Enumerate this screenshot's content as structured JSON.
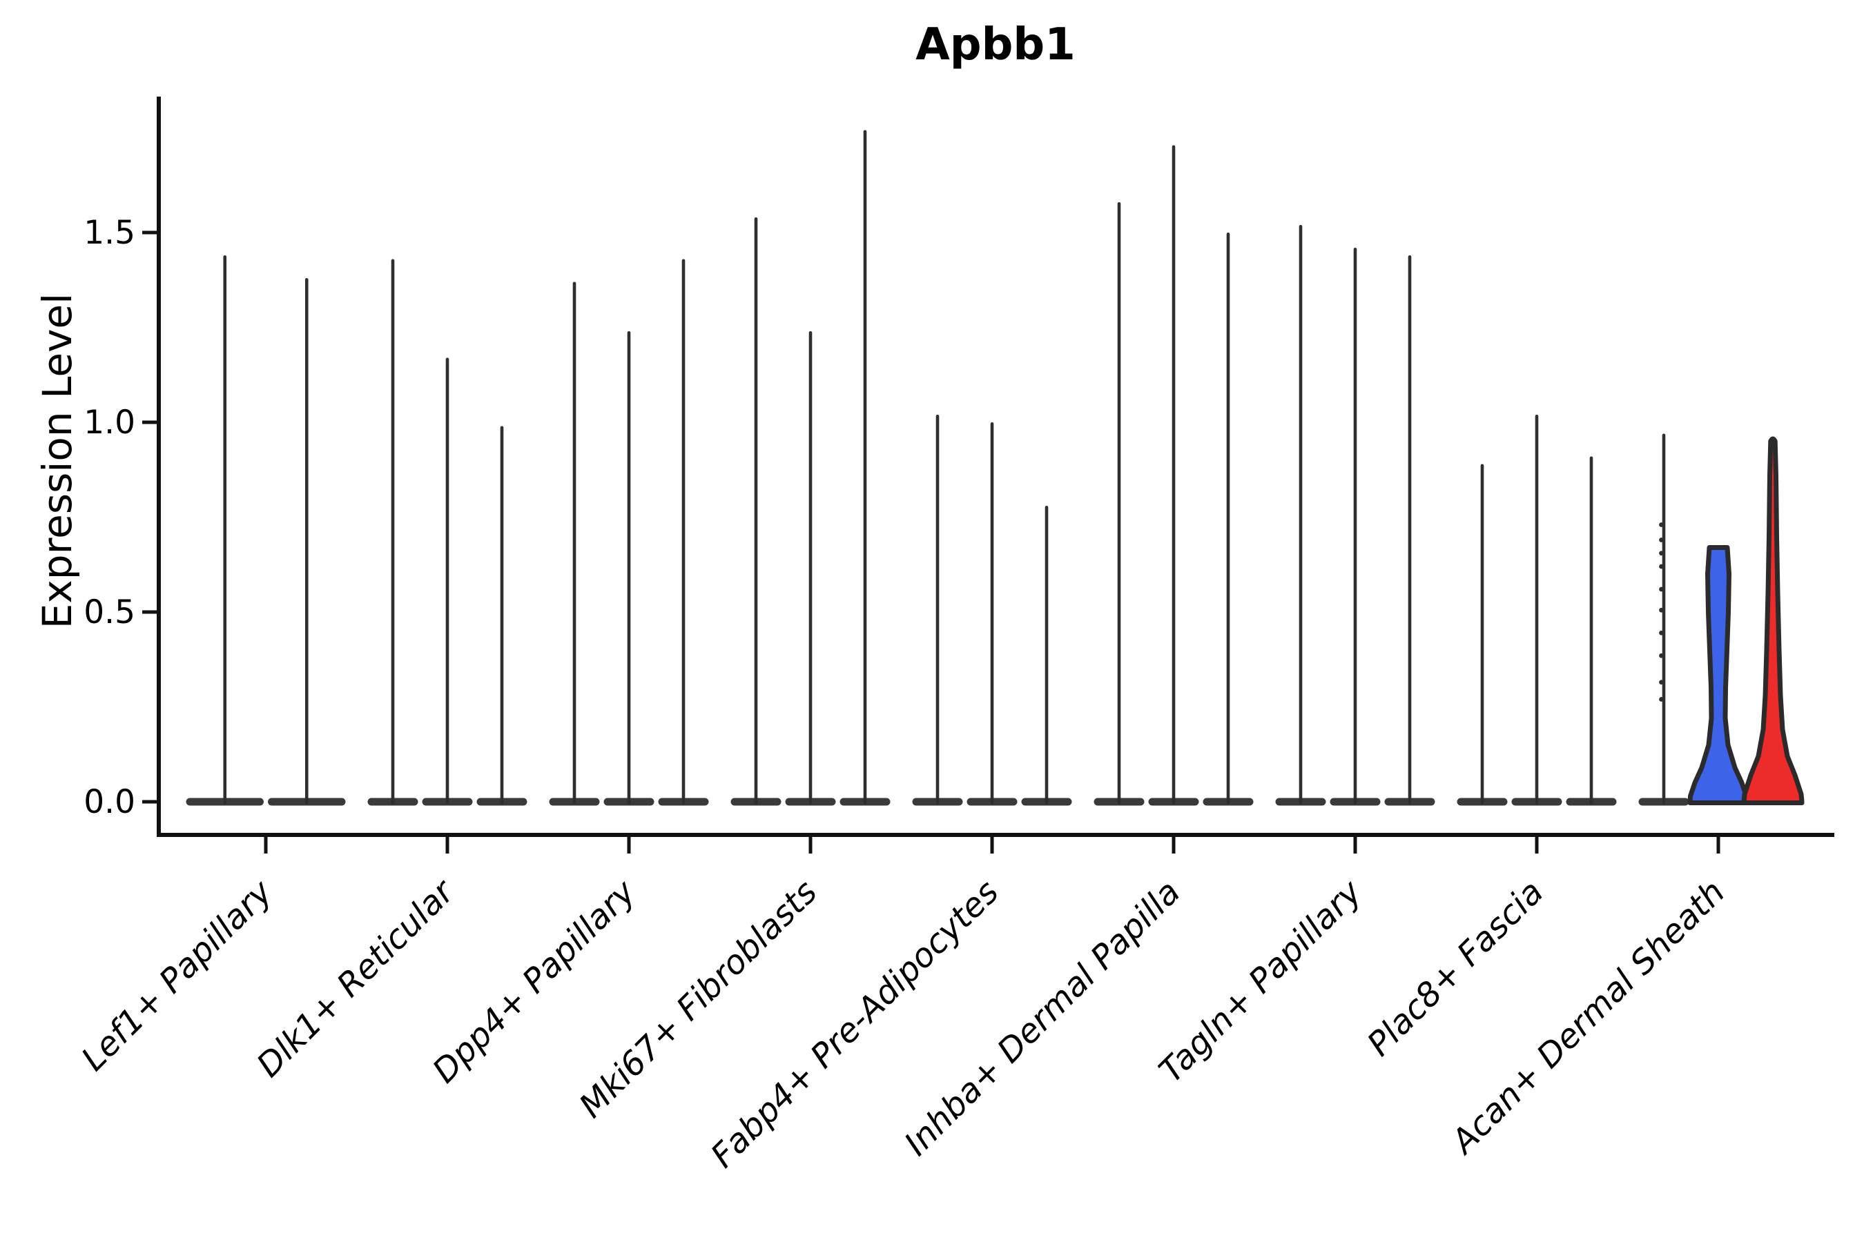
{
  "title": "Apbb1",
  "ylabel": "Expression Level",
  "chart_data": {
    "type": "violin",
    "title": "Apbb1",
    "xlabel": "",
    "ylabel": "Expression Level",
    "ylim": [
      -0.09,
      1.84
    ],
    "yticks": [
      0.0,
      0.5,
      1.0,
      1.5
    ],
    "grid": false,
    "legend": "none",
    "colors": {
      "spike": "#2e2e2e",
      "base": "#3a3a3a",
      "outline": "#2b2b2b",
      "axis": "#111111",
      "blue": "#3d64e8",
      "red": "#ee2b2b"
    },
    "categories": [
      "Lef1+ Papillary",
      "Dlk1+ Reticular",
      "Dpp4+ Papillary",
      "Mki67+ Fibroblasts",
      "Fabp4+ Pre-Adipocytes",
      "Inhba+ Dermal Papilla",
      "Tagln+ Papillary",
      "Plac8+ Fascia",
      "Acan+ Dermal Sheath"
    ],
    "groups": [
      {
        "category": "Lef1+ Papillary",
        "violins": [
          {
            "style": "spike",
            "peak": 1.44
          },
          {
            "style": "spike",
            "peak": 1.38
          }
        ]
      },
      {
        "category": "Dlk1+ Reticular",
        "violins": [
          {
            "style": "spike",
            "peak": 1.43
          },
          {
            "style": "spike",
            "peak": 1.17
          },
          {
            "style": "spike",
            "peak": 0.99
          }
        ]
      },
      {
        "category": "Dpp4+ Papillary",
        "violins": [
          {
            "style": "spike",
            "peak": 1.37
          },
          {
            "style": "spike",
            "peak": 1.24
          },
          {
            "style": "spike",
            "peak": 1.43
          }
        ]
      },
      {
        "category": "Mki67+ Fibroblasts",
        "violins": [
          {
            "style": "spike",
            "peak": 1.54
          },
          {
            "style": "spike",
            "peak": 1.24
          },
          {
            "style": "spike",
            "peak": 1.77
          }
        ]
      },
      {
        "category": "Fabp4+ Pre-Adipocytes",
        "violins": [
          {
            "style": "spike",
            "peak": 1.02
          },
          {
            "style": "spike",
            "peak": 1.0
          },
          {
            "style": "spike",
            "peak": 0.78
          }
        ]
      },
      {
        "category": "Inhba+ Dermal Papilla",
        "violins": [
          {
            "style": "spike",
            "peak": 1.58
          },
          {
            "style": "spike",
            "peak": 1.73
          },
          {
            "style": "spike",
            "peak": 1.5
          }
        ]
      },
      {
        "category": "Tagln+ Papillary",
        "violins": [
          {
            "style": "spike",
            "peak": 1.52
          },
          {
            "style": "spike",
            "peak": 1.46
          },
          {
            "style": "spike",
            "peak": 1.44
          }
        ]
      },
      {
        "category": "Plac8+ Fascia",
        "violins": [
          {
            "style": "spike",
            "peak": 0.89
          },
          {
            "style": "spike",
            "peak": 1.02
          },
          {
            "style": "spike",
            "peak": 0.91
          }
        ]
      },
      {
        "category": "Acan+ Dermal Sheath",
        "violins": [
          {
            "style": "spike",
            "peak": 0.97,
            "points": [
              0.73,
              0.69,
              0.655,
              0.62,
              0.56,
              0.505,
              0.445,
              0.385,
              0.315,
              0.27
            ]
          },
          {
            "style": "wide",
            "peak": 0.67,
            "color": "#3d64e8",
            "flat_top": true,
            "profile": [
              [
                0.67,
                13
              ],
              [
                0.6,
                15.5
              ],
              [
                0.5,
                14.5
              ],
              [
                0.4,
                12.5
              ],
              [
                0.3,
                10.5
              ],
              [
                0.22,
                10
              ],
              [
                0.15,
                14
              ],
              [
                0.09,
                24
              ],
              [
                0.05,
                34
              ],
              [
                0.015,
                40.5
              ],
              [
                0.0,
                41
              ]
            ]
          },
          {
            "style": "wide",
            "peak": 0.95,
            "color": "#ee2b2b",
            "flat_top": false,
            "profile": [
              [
                0.95,
                3.2
              ],
              [
                0.86,
                4.5
              ],
              [
                0.7,
                5.5
              ],
              [
                0.55,
                7
              ],
              [
                0.4,
                9
              ],
              [
                0.28,
                11
              ],
              [
                0.19,
                14
              ],
              [
                0.12,
                21
              ],
              [
                0.07,
                32
              ],
              [
                0.02,
                41
              ],
              [
                0.0,
                42
              ]
            ]
          }
        ]
      }
    ]
  }
}
